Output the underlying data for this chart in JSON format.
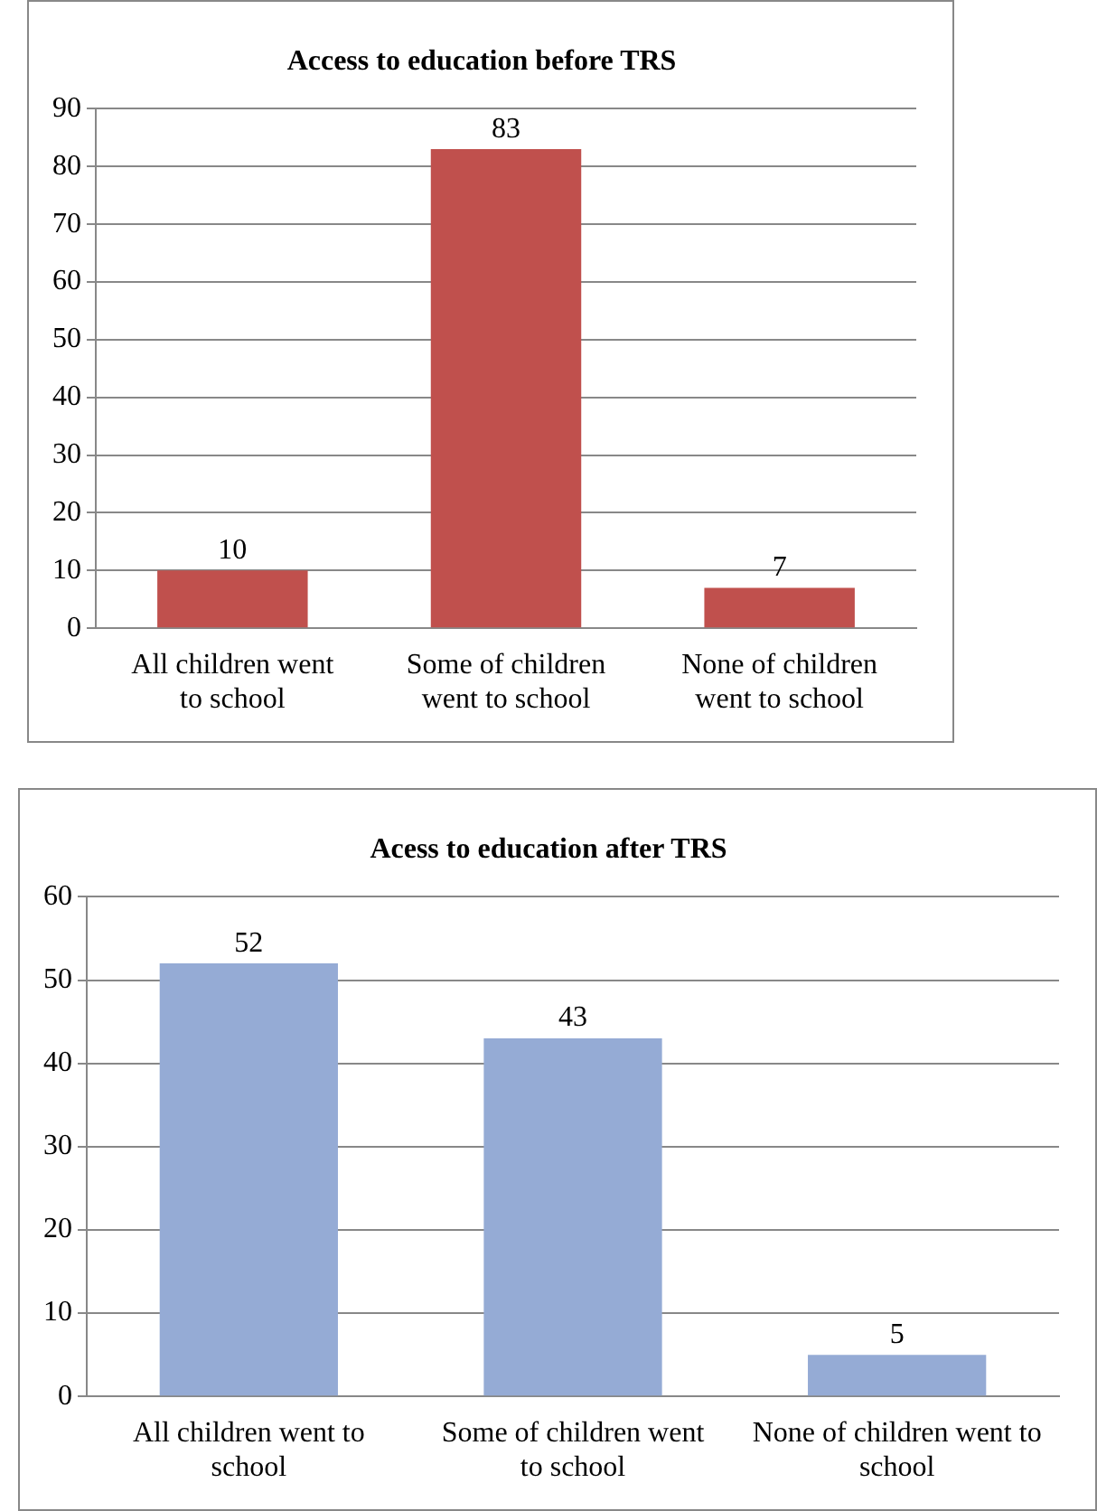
{
  "chart_data": [
    {
      "type": "bar",
      "title": "Access to education before TRS",
      "categories": [
        "All children went to school",
        "Some of children went to school",
        "None of children went to school"
      ],
      "values": [
        10,
        83,
        7
      ],
      "color": "#c0504d",
      "ylim": [
        0,
        90
      ],
      "yticks": [
        0,
        10,
        20,
        30,
        40,
        50,
        60,
        70,
        80,
        90
      ],
      "grid": "y",
      "data_labels": true
    },
    {
      "type": "bar",
      "title": "Acess to education after TRS",
      "categories": [
        "All children went to school",
        "Some of children went to school",
        "None of children went to school"
      ],
      "values": [
        52,
        43,
        5
      ],
      "color": "#95abd5",
      "ylim": [
        0,
        60
      ],
      "yticks": [
        0,
        10,
        20,
        30,
        40,
        50,
        60
      ],
      "grid": "y",
      "data_labels": true
    }
  ]
}
